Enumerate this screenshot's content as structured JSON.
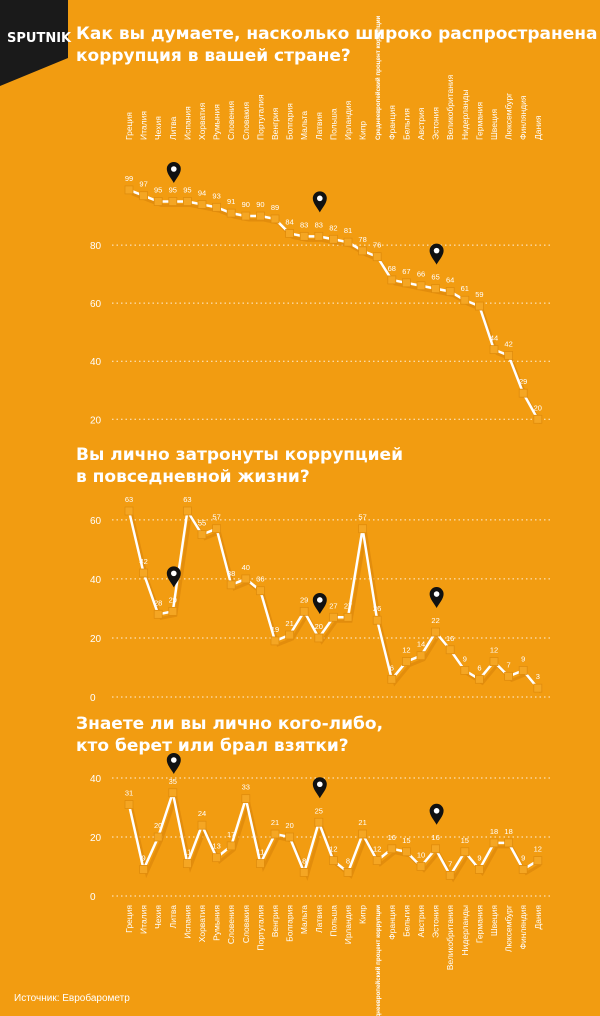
{
  "brand": {
    "name": "SPUTNIK"
  },
  "source": "Источник: Евробарометр",
  "colors": {
    "background": "#F29C11",
    "line": "#ffffff",
    "marker": "#F5A623",
    "label": "#ffffff",
    "pin": "#111111"
  },
  "chart_data": [
    {
      "type": "line",
      "title_lines": [
        "Как вы думаете, насколько широко распространена",
        "коррупция в вашей стране?"
      ],
      "categories": [
        "Греция",
        "Италия",
        "Чехия",
        "Литва",
        "Испания",
        "Хорватия",
        "Румыния",
        "Словения",
        "Словакия",
        "Португалия",
        "Венгрия",
        "Болгария",
        "Мальта",
        "Латвия",
        "Польша",
        "Ирландия",
        "Кипр",
        "Среднеевропейский процент коррупции",
        "Франция",
        "Бельгия",
        "Австрия",
        "Эстония",
        "Великобритания",
        "Нидерланды",
        "Германия",
        "Швеция",
        "Люксембург",
        "Финляндия",
        "Дания"
      ],
      "values": [
        99,
        97,
        95,
        95,
        95,
        94,
        93,
        91,
        90,
        90,
        89,
        84,
        83,
        83,
        82,
        81,
        78,
        76,
        68,
        67,
        66,
        65,
        64,
        61,
        59,
        44,
        42,
        29,
        20
      ],
      "yticks": [
        20,
        40,
        60,
        80
      ],
      "ylim": [
        17,
        100
      ],
      "highlighted": [
        "Литва",
        "Латвия",
        "Эстония"
      ]
    },
    {
      "type": "line",
      "title_lines": [
        "Вы лично затронуты коррупцией",
        "в повседневной жизни?"
      ],
      "values": [
        63,
        42,
        28,
        29,
        63,
        55,
        57,
        38,
        40,
        36,
        19,
        21,
        29,
        20,
        27,
        27,
        57,
        26,
        6,
        12,
        14,
        22,
        16,
        9,
        6,
        12,
        7,
        9,
        3
      ],
      "yticks": [
        0,
        20,
        40,
        60
      ],
      "ylim": [
        0,
        63
      ],
      "highlighted": [
        "Литва",
        "Латвия",
        "Эстония"
      ]
    },
    {
      "type": "line",
      "title_lines": [
        "Знаете ли вы лично кого-либо,",
        "кто берет или брал взятки?"
      ],
      "categories": [
        "Греция",
        "Италия",
        "Чехия",
        "Литва",
        "Испания",
        "Хорватия",
        "Румыния",
        "Словения",
        "Словакия",
        "Португалия",
        "Венгрия",
        "Болгария",
        "Мальта",
        "Латвия",
        "Польша",
        "Ирландия",
        "Кипр",
        "Среднеевропейский процент коррупции",
        "Франция",
        "Бельгия",
        "Австрия",
        "Эстония",
        "Великобритания",
        "Нидерланды",
        "Германия",
        "Швеция",
        "Люксембург",
        "Финляндия",
        "Дания"
      ],
      "values": [
        31,
        9,
        20,
        35,
        11,
        24,
        13,
        17,
        33,
        11,
        21,
        20,
        8,
        25,
        12,
        8,
        21,
        12,
        16,
        15,
        10,
        16,
        7,
        15,
        9,
        18,
        18,
        9,
        12
      ],
      "yticks": [
        0,
        20,
        40
      ],
      "ylim": [
        0,
        40
      ],
      "highlighted": [
        "Литва",
        "Латвия",
        "Эстония"
      ]
    }
  ]
}
